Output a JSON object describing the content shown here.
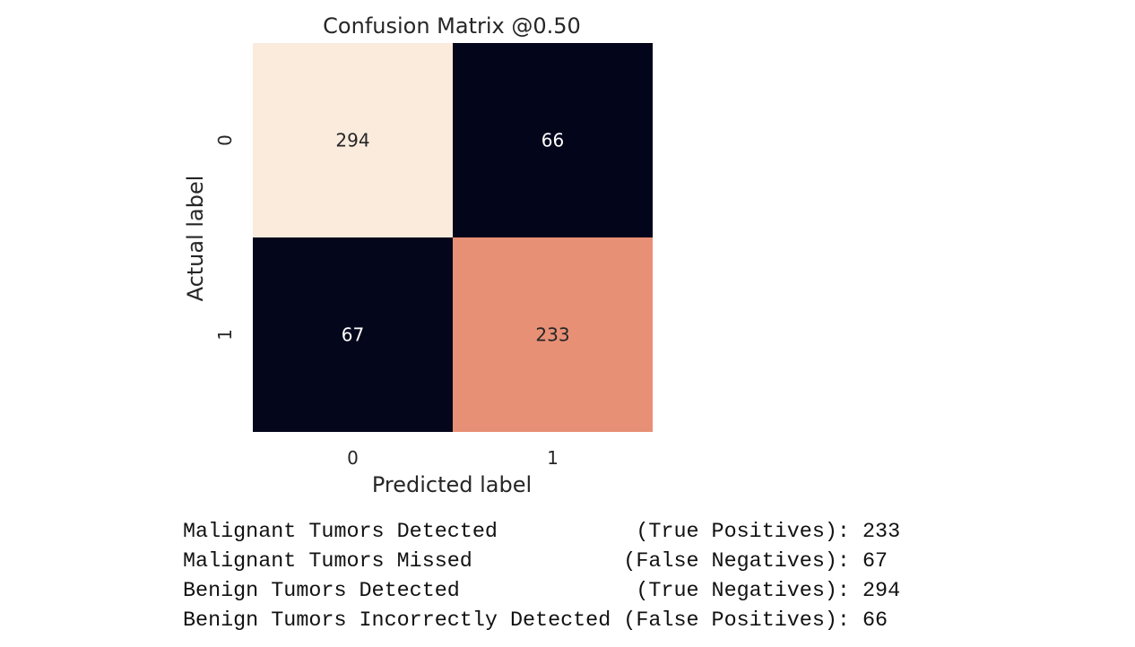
{
  "chart_data": {
    "type": "heatmap",
    "title": "Confusion Matrix @0.50",
    "xlabel": "Predicted label",
    "ylabel": "Actual label",
    "x_ticks": [
      "0",
      "1"
    ],
    "y_ticks": [
      "0",
      "1"
    ],
    "matrix": [
      [
        294,
        66
      ],
      [
        67,
        233
      ]
    ],
    "colorbar": false,
    "colormap": "rocket",
    "colors": {
      "min": "#03051a",
      "mid": "#e5856a",
      "max": "#faebdd",
      "text_on_dark": "#ffffff",
      "text_on_light": "#262626"
    }
  },
  "stats": [
    {
      "label": "Malignant Tumors Detected",
      "kind": "(True Positives):",
      "value": "233"
    },
    {
      "label": "Malignant Tumors Missed",
      "kind": "(False Negatives):",
      "value": "67"
    },
    {
      "label": "Benign Tumors Detected",
      "kind": "(True Negatives):",
      "value": "294"
    },
    {
      "label": "Benign Tumors Incorrectly Detected",
      "kind": "(False Positives):",
      "value": "66"
    }
  ]
}
